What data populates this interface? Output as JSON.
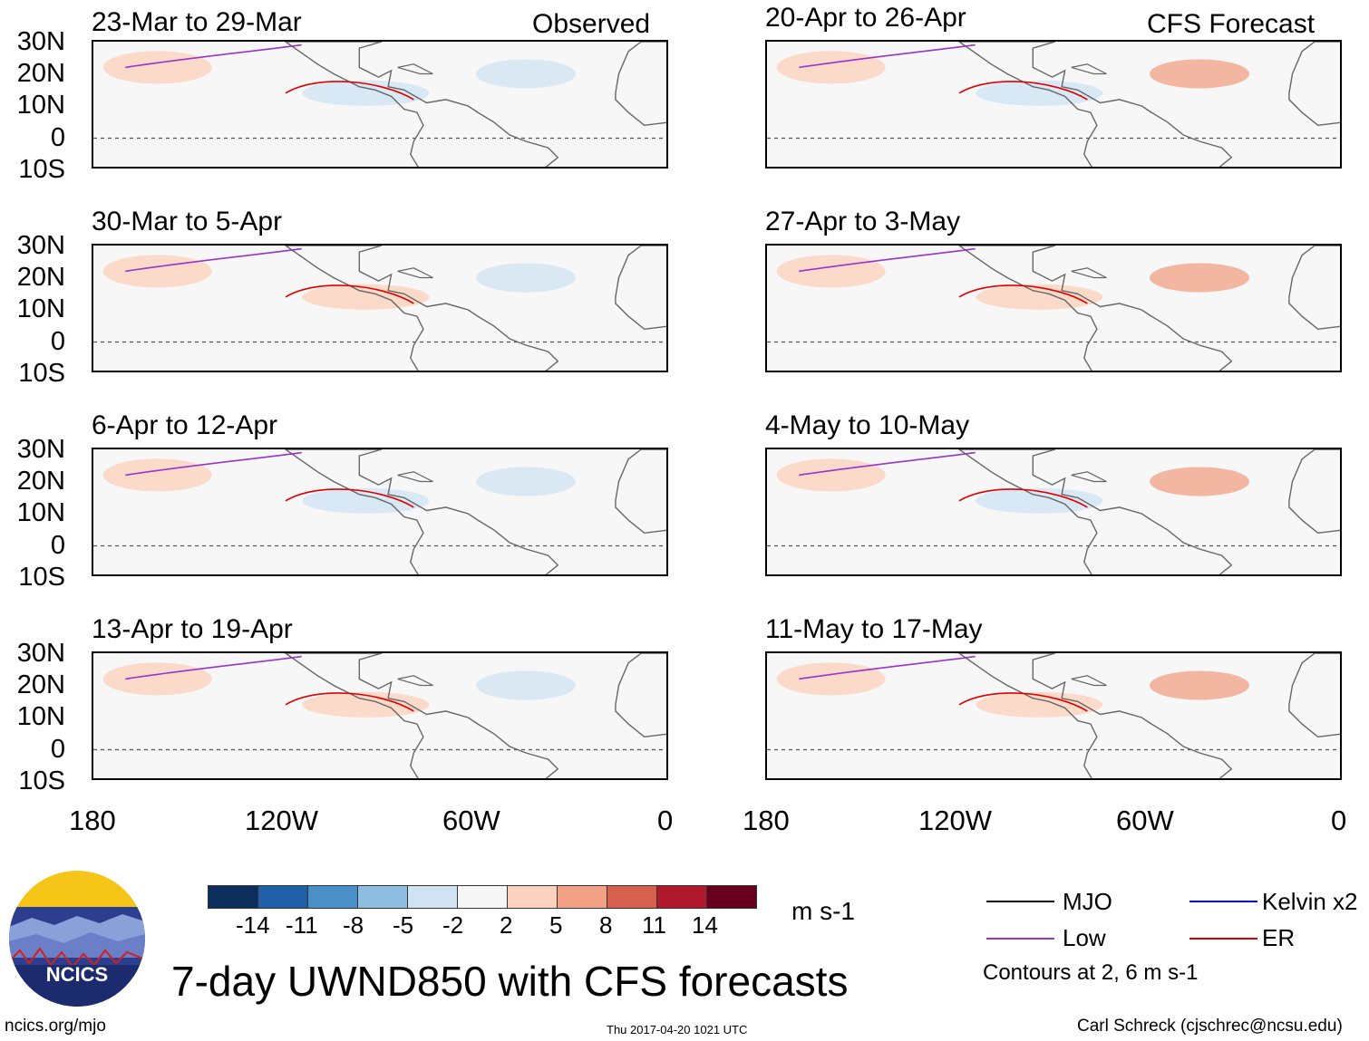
{
  "header": {
    "left_label": "Observed",
    "right_label": "CFS Forecast"
  },
  "panels": {
    "observed": [
      {
        "title": "23-Mar to 29-Mar"
      },
      {
        "title": "30-Mar to 5-Apr"
      },
      {
        "title": "6-Apr to 12-Apr"
      },
      {
        "title": "13-Apr to 19-Apr"
      }
    ],
    "forecast": [
      {
        "title": "20-Apr to 26-Apr"
      },
      {
        "title": "27-Apr to 3-May"
      },
      {
        "title": "4-May to 10-May"
      },
      {
        "title": "11-May to 17-May"
      }
    ]
  },
  "axes": {
    "lat_labels": [
      "30N",
      "20N",
      "10N",
      "0",
      "10S"
    ],
    "lon_labels": [
      "180",
      "120W",
      "60W",
      "0"
    ],
    "lat_range": [
      -10,
      30
    ],
    "lon_range": [
      -180,
      0
    ]
  },
  "colorbar": {
    "ticks": [
      "-14",
      "-11",
      "-8",
      "-5",
      "-2",
      "2",
      "5",
      "8",
      "11",
      "14"
    ],
    "colors": [
      "#0b2e5a",
      "#1f5fa8",
      "#4a8fc6",
      "#8dbde0",
      "#cfe3f2",
      "#f7f7f7",
      "#fbd2bd",
      "#f2a184",
      "#d6604d",
      "#b2182b",
      "#67001f"
    ],
    "units": "m s-1"
  },
  "legend": {
    "items": [
      {
        "label": "MJO",
        "color": "#000000"
      },
      {
        "label": "Low",
        "color": "#9933cc"
      },
      {
        "label": "Kelvin x2",
        "color": "#0000cc"
      },
      {
        "label": "ER",
        "color": "#e00000"
      }
    ],
    "note": "Contours at 2, 6 m s-1"
  },
  "title": "7-day UWND850 with CFS forecasts",
  "logo": {
    "text": "NCICS"
  },
  "footer": {
    "url": "ncics.org/mjo",
    "timestamp": "Thu 2017-04-20 1021 UTC",
    "author": "Carl Schreck (cjschrec@ncsu.edu)"
  }
}
